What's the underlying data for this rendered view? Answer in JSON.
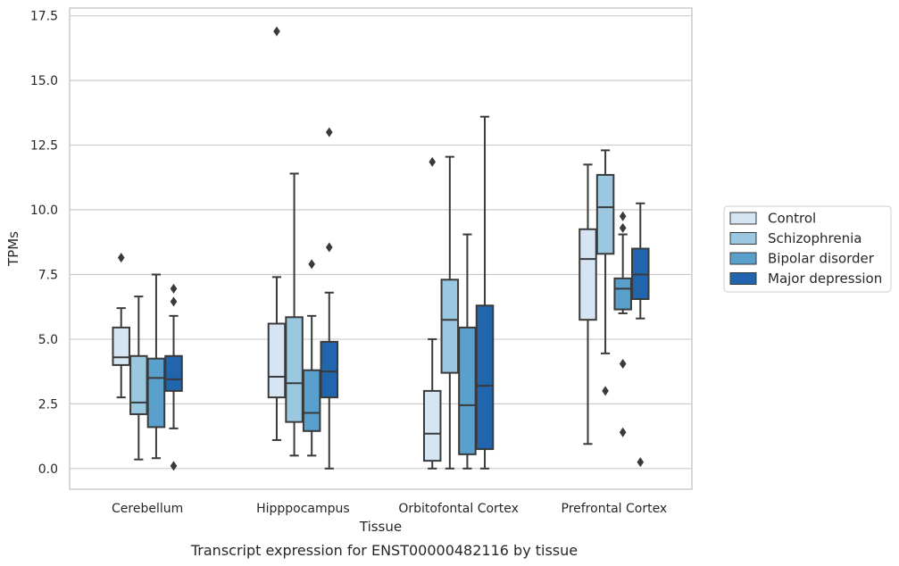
{
  "caption": "Transcript expression for ENST00000482116 by tissue",
  "chart_data": {
    "type": "box",
    "xlabel": "Tissue",
    "ylabel": "TPMs",
    "ylim": [
      -0.8,
      17.8
    ],
    "yticks": [
      0.0,
      2.5,
      5.0,
      7.5,
      10.0,
      12.5,
      15.0,
      17.5
    ],
    "ytick_labels": [
      "0.0",
      "2.5",
      "5.0",
      "7.5",
      "10.0",
      "12.5",
      "15.0",
      "17.5"
    ],
    "grid": "horizontal",
    "legend_position": "right",
    "categories": [
      "Cerebellum",
      "Hipppocampus",
      "Orbitofontal Cortex",
      "Prefrontal Cortex"
    ],
    "series": [
      {
        "name": "Control",
        "color": "#d5e5f4",
        "boxes": [
          {
            "whisker_low": 2.75,
            "q1": 4.0,
            "median": 4.3,
            "q3": 5.45,
            "whisker_high": 6.2,
            "outliers": [
              8.15
            ]
          },
          {
            "whisker_low": 1.1,
            "q1": 2.75,
            "median": 3.55,
            "q3": 5.6,
            "whisker_high": 7.4,
            "outliers": [
              16.9
            ]
          },
          {
            "whisker_low": 0.0,
            "q1": 0.3,
            "median": 1.35,
            "q3": 3.0,
            "whisker_high": 5.0,
            "outliers": [
              11.85
            ]
          },
          {
            "whisker_low": 0.95,
            "q1": 5.75,
            "median": 8.1,
            "q3": 9.25,
            "whisker_high": 11.75,
            "outliers": []
          }
        ]
      },
      {
        "name": "Schizophrenia",
        "color": "#9ac8e0",
        "boxes": [
          {
            "whisker_low": 0.35,
            "q1": 2.1,
            "median": 2.55,
            "q3": 4.35,
            "whisker_high": 6.65,
            "outliers": []
          },
          {
            "whisker_low": 0.5,
            "q1": 1.8,
            "median": 3.3,
            "q3": 5.85,
            "whisker_high": 11.4,
            "outliers": []
          },
          {
            "whisker_low": 0.0,
            "q1": 3.7,
            "median": 5.75,
            "q3": 7.3,
            "whisker_high": 12.05,
            "outliers": []
          },
          {
            "whisker_low": 4.45,
            "q1": 8.3,
            "median": 10.1,
            "q3": 11.35,
            "whisker_high": 12.3,
            "outliers": [
              3.0
            ]
          }
        ]
      },
      {
        "name": "Bipolar disorder",
        "color": "#5aa0cd",
        "boxes": [
          {
            "whisker_low": 0.4,
            "q1": 1.6,
            "median": 3.5,
            "q3": 4.25,
            "whisker_high": 7.5,
            "outliers": []
          },
          {
            "whisker_low": 0.5,
            "q1": 1.45,
            "median": 2.15,
            "q3": 3.8,
            "whisker_high": 5.9,
            "outliers": [
              7.9
            ]
          },
          {
            "whisker_low": 0.0,
            "q1": 0.55,
            "median": 2.45,
            "q3": 5.45,
            "whisker_high": 9.05,
            "outliers": []
          },
          {
            "whisker_low": 6.0,
            "q1": 6.15,
            "median": 6.95,
            "q3": 7.35,
            "whisker_high": 9.05,
            "outliers": [
              9.75,
              9.3,
              4.05,
              1.4
            ]
          }
        ]
      },
      {
        "name": "Major depression",
        "color": "#2166ac",
        "boxes": [
          {
            "whisker_low": 1.55,
            "q1": 3.0,
            "median": 3.45,
            "q3": 4.35,
            "whisker_high": 5.9,
            "outliers": [
              6.95,
              6.45,
              0.1
            ]
          },
          {
            "whisker_low": 0.0,
            "q1": 2.75,
            "median": 3.75,
            "q3": 4.9,
            "whisker_high": 6.8,
            "outliers": [
              13.0,
              8.55
            ]
          },
          {
            "whisker_low": 0.0,
            "q1": 0.75,
            "median": 3.2,
            "q3": 6.3,
            "whisker_high": 13.6,
            "outliers": []
          },
          {
            "whisker_low": 5.8,
            "q1": 6.55,
            "median": 7.5,
            "q3": 8.5,
            "whisker_high": 10.25,
            "outliers": [
              0.25
            ]
          }
        ]
      }
    ]
  }
}
